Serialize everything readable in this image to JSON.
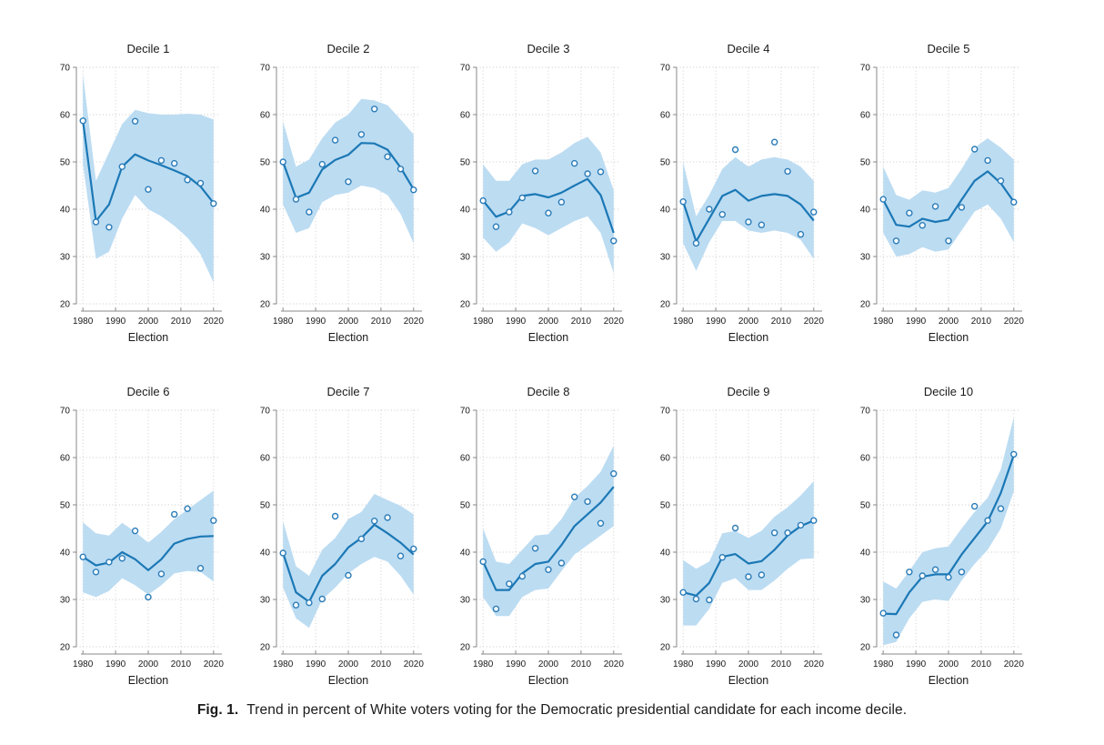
{
  "figure": {
    "caption_label": "Fig. 1.",
    "caption_text": "Trend in percent of White voters voting for the Democratic presidential candidate for each income decile."
  },
  "chart_data": {
    "type": "line",
    "layout": "small-multiples 5x2",
    "xlabel": "Election",
    "ylabel": "",
    "x": [
      1980,
      1984,
      1988,
      1992,
      1996,
      2000,
      2004,
      2008,
      2012,
      2016,
      2020
    ],
    "x_ticks": [
      1980,
      1990,
      2000,
      2010,
      2020
    ],
    "y_ticks": [
      20,
      30,
      40,
      50,
      60,
      70
    ],
    "ylim": [
      20,
      70
    ],
    "xlim": [
      1978,
      2022
    ],
    "grid": "dotted",
    "legend": "none",
    "colors": {
      "trend_line": "#1b78b5",
      "confidence_band": "#bcdcf2",
      "marker_stroke": "#2b7cb8",
      "marker_fill": "#ffffff",
      "gridline": "#c9c9c9",
      "axis": "#8a8a8a",
      "text": "#1a1a1a"
    },
    "panels": [
      {
        "title": "Decile 1",
        "points": [
          58.7,
          37.3,
          36.2,
          49.0,
          58.6,
          44.2,
          50.3,
          49.7,
          46.2,
          45.5,
          41.2
        ],
        "trend": [
          58.7,
          37.5,
          41.0,
          49.0,
          51.6,
          50.3,
          49.3,
          48.2,
          47.0,
          44.8,
          41.3
        ],
        "band_upper": [
          68.5,
          46.0,
          52.0,
          58.0,
          61.0,
          60.3,
          60.0,
          60.0,
          60.2,
          60.0,
          59.0
        ],
        "band_lower": [
          49.5,
          29.5,
          31.0,
          38.0,
          43.0,
          40.0,
          38.5,
          36.5,
          34.0,
          30.5,
          24.5
        ]
      },
      {
        "title": "Decile 2",
        "points": [
          50.0,
          42.1,
          39.4,
          49.5,
          54.6,
          45.8,
          55.8,
          61.2,
          51.1,
          48.5,
          44.1
        ],
        "trend": [
          50.0,
          42.4,
          43.5,
          48.4,
          50.4,
          51.5,
          54.0,
          53.9,
          52.6,
          48.8,
          44.2
        ],
        "band_upper": [
          58.5,
          49.0,
          50.5,
          55.0,
          58.3,
          60.0,
          63.3,
          63.0,
          62.0,
          59.0,
          55.8
        ],
        "band_lower": [
          41.0,
          35.0,
          36.0,
          41.5,
          43.0,
          43.5,
          45.0,
          44.5,
          43.0,
          39.0,
          32.8
        ]
      },
      {
        "title": "Decile 3",
        "points": [
          41.8,
          36.3,
          39.4,
          42.4,
          48.1,
          39.2,
          41.5,
          49.7,
          47.5,
          47.9,
          33.3
        ],
        "trend": [
          41.8,
          38.4,
          39.5,
          42.8,
          43.2,
          42.5,
          43.5,
          45.0,
          46.4,
          43.0,
          35.0
        ],
        "band_upper": [
          49.5,
          46.0,
          46.0,
          49.5,
          50.5,
          50.5,
          52.0,
          54.0,
          55.3,
          52.0,
          44.0
        ],
        "band_lower": [
          34.0,
          31.0,
          33.0,
          37.0,
          36.0,
          34.5,
          36.0,
          37.5,
          38.5,
          35.0,
          26.5
        ]
      },
      {
        "title": "Decile 4",
        "points": [
          41.6,
          32.8,
          40.0,
          38.9,
          52.6,
          37.3,
          36.7,
          54.2,
          48.0,
          34.7,
          39.4
        ],
        "trend": [
          41.6,
          33.2,
          38.0,
          42.8,
          44.1,
          41.8,
          42.8,
          43.2,
          42.8,
          41.0,
          37.6
        ],
        "band_upper": [
          50.0,
          38.5,
          43.0,
          48.5,
          51.0,
          49.0,
          50.5,
          51.0,
          50.5,
          49.0,
          46.0
        ],
        "band_lower": [
          32.8,
          27.0,
          33.0,
          37.5,
          37.5,
          35.5,
          35.0,
          35.5,
          35.0,
          33.5,
          29.5
        ]
      },
      {
        "title": "Decile 5",
        "points": [
          42.1,
          33.3,
          39.2,
          36.6,
          40.6,
          33.3,
          40.4,
          52.7,
          50.3,
          46.0,
          41.5
        ],
        "trend": [
          42.0,
          36.7,
          36.3,
          38.0,
          37.3,
          37.8,
          42.0,
          46.0,
          48.0,
          45.5,
          41.6
        ],
        "band_upper": [
          49.0,
          43.0,
          42.0,
          44.0,
          43.5,
          44.5,
          48.5,
          53.0,
          55.0,
          53.0,
          50.5
        ],
        "band_lower": [
          35.0,
          30.0,
          30.5,
          32.0,
          31.0,
          31.5,
          35.5,
          39.5,
          41.0,
          38.0,
          33.0
        ]
      },
      {
        "title": "Decile 6",
        "points": [
          39.0,
          35.8,
          37.9,
          38.7,
          44.5,
          30.5,
          35.4,
          48.0,
          49.2,
          36.6,
          46.7
        ],
        "trend": [
          39.0,
          37.2,
          37.8,
          40.0,
          38.5,
          36.2,
          38.5,
          41.8,
          42.8,
          43.3,
          43.4
        ],
        "band_upper": [
          46.3,
          44.0,
          43.5,
          46.2,
          44.3,
          42.0,
          44.3,
          47.0,
          49.0,
          51.0,
          53.0
        ],
        "band_lower": [
          31.5,
          30.5,
          31.8,
          34.5,
          33.0,
          31.0,
          33.0,
          35.5,
          36.0,
          35.8,
          33.8
        ]
      },
      {
        "title": "Decile 7",
        "points": [
          39.8,
          28.8,
          29.3,
          30.1,
          47.6,
          35.1,
          42.8,
          46.6,
          47.3,
          39.2,
          40.7
        ],
        "trend": [
          39.8,
          31.5,
          29.5,
          35.0,
          37.5,
          41.0,
          43.0,
          45.8,
          44.0,
          42.0,
          39.5
        ],
        "band_upper": [
          46.5,
          37.0,
          35.0,
          40.5,
          43.0,
          47.0,
          48.5,
          52.3,
          51.0,
          49.8,
          48.0
        ],
        "band_lower": [
          32.5,
          26.0,
          24.0,
          30.0,
          32.5,
          35.5,
          37.5,
          39.0,
          38.0,
          35.0,
          31.0
        ]
      },
      {
        "title": "Decile 8",
        "points": [
          38.0,
          28.0,
          33.3,
          34.9,
          40.8,
          36.3,
          37.7,
          51.7,
          50.7,
          46.1,
          56.6
        ],
        "trend": [
          38.0,
          32.0,
          32.0,
          35.5,
          37.5,
          38.0,
          41.5,
          45.5,
          48.0,
          50.5,
          53.8
        ],
        "band_upper": [
          45.0,
          38.0,
          37.5,
          40.5,
          43.5,
          43.8,
          47.0,
          51.5,
          54.0,
          57.0,
          62.5
        ],
        "band_lower": [
          30.5,
          26.5,
          26.5,
          30.5,
          32.0,
          32.3,
          36.0,
          39.5,
          41.5,
          43.5,
          45.5
        ]
      },
      {
        "title": "Decile 9",
        "points": [
          31.5,
          30.1,
          29.9,
          38.9,
          45.1,
          34.8,
          35.2,
          44.1,
          44.1,
          45.7,
          46.7
        ],
        "trend": [
          31.5,
          30.8,
          33.5,
          39.0,
          39.6,
          37.6,
          38.1,
          40.5,
          43.5,
          45.5,
          46.7
        ],
        "band_upper": [
          38.3,
          36.5,
          38.0,
          44.0,
          44.5,
          43.0,
          44.5,
          47.5,
          49.5,
          52.0,
          55.0
        ],
        "band_lower": [
          24.5,
          24.5,
          28.0,
          33.5,
          34.5,
          32.0,
          32.0,
          34.0,
          36.5,
          38.5,
          38.7
        ]
      },
      {
        "title": "Decile 10",
        "points": [
          27.1,
          22.5,
          35.8,
          35.0,
          36.3,
          34.7,
          35.8,
          49.7,
          46.7,
          49.2,
          60.7
        ],
        "trend": [
          27.0,
          26.9,
          31.5,
          34.8,
          35.3,
          35.3,
          39.5,
          43.0,
          46.5,
          52.5,
          60.5
        ],
        "band_upper": [
          33.8,
          32.3,
          36.0,
          40.0,
          40.8,
          41.2,
          45.0,
          48.5,
          51.5,
          57.5,
          68.5
        ],
        "band_lower": [
          20.3,
          21.0,
          26.0,
          29.5,
          30.0,
          29.7,
          34.0,
          37.5,
          40.5,
          45.0,
          52.8
        ]
      }
    ]
  }
}
